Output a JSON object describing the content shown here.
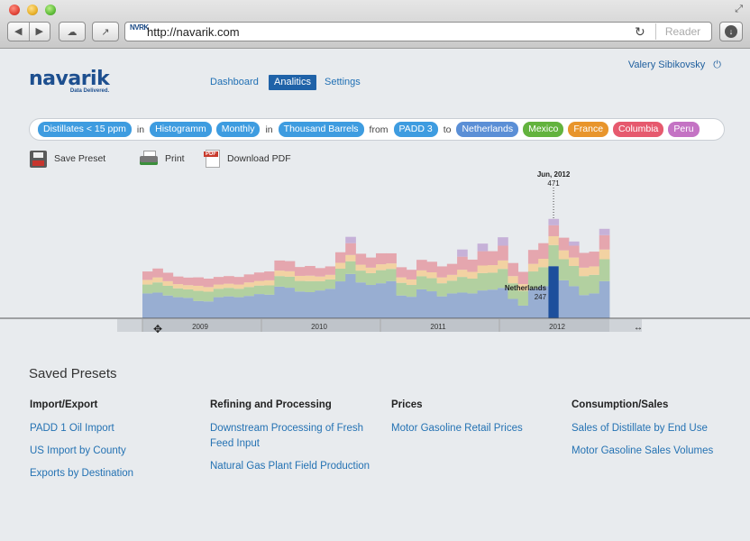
{
  "browser": {
    "url": "http://navarik.com",
    "favicon_text": "NVRK",
    "reader_label": "Reader"
  },
  "logo": {
    "name": "navarik",
    "tagline": "Data Delivered."
  },
  "nav": {
    "dashboard": "Dashboard",
    "analytics": "Analitics",
    "settings": "Settings"
  },
  "user": {
    "name": "Valery Sibikovsky"
  },
  "query": {
    "product": "Distillates < 15 ppm",
    "in1": "in",
    "chart_type": "Histogramm",
    "period": "Monthly",
    "in2": "in",
    "unit": "Thousand Barrels",
    "from_word": "from",
    "origin": "PADD 3",
    "to_word": "to",
    "destinations": [
      {
        "label": "Netherlands",
        "color": "#5b8fd6"
      },
      {
        "label": "Mexico",
        "color": "#63b33e"
      },
      {
        "label": "France",
        "color": "#e8952c"
      },
      {
        "label": "Columbia",
        "color": "#e65a6e"
      },
      {
        "label": "Peru",
        "color": "#c473c4"
      }
    ]
  },
  "actions": {
    "save": "Save Preset",
    "print": "Print",
    "pdf": "Download PDF"
  },
  "chart_data": {
    "type": "area",
    "stacked": true,
    "unit": "Thousand Barrels",
    "x_ticks": [
      "2009",
      "2010",
      "2011",
      "2012"
    ],
    "series": [
      {
        "name": "Netherlands",
        "color": "#98aed2",
        "values": [
          118,
          122,
          108,
          100,
          97,
          82,
          80,
          100,
          104,
          100,
          106,
          115,
          112,
          150,
          145,
          127,
          124,
          132,
          140,
          175,
          210,
          170,
          158,
          166,
          176,
          108,
          102,
          137,
          128,
          104,
          118,
          122,
          118,
          132,
          136,
          144,
          92,
          60,
          142,
          152,
          247,
          180,
          152,
          110,
          118,
          176
        ]
      },
      {
        "name": "Mexico",
        "color": "#b2d0a0",
        "values": [
          42,
          48,
          46,
          42,
          40,
          48,
          46,
          40,
          40,
          40,
          42,
          40,
          44,
          50,
          52,
          50,
          52,
          44,
          44,
          60,
          60,
          56,
          56,
          62,
          58,
          60,
          56,
          62,
          62,
          62,
          60,
          74,
          70,
          82,
          80,
          90,
          74,
          70,
          80,
          90,
          100,
          100,
          96,
          90,
          88,
          104
        ]
      },
      {
        "name": "France",
        "color": "#f2d2a2",
        "values": [
          22,
          24,
          22,
          20,
          20,
          24,
          22,
          20,
          20,
          20,
          22,
          22,
          24,
          26,
          26,
          24,
          26,
          22,
          22,
          28,
          30,
          28,
          26,
          28,
          26,
          26,
          26,
          28,
          28,
          28,
          28,
          34,
          32,
          36,
          36,
          40,
          34,
          32,
          36,
          40,
          42,
          42,
          40,
          40,
          40,
          46
        ]
      },
      {
        "name": "Columbia",
        "color": "#e5a6ae",
        "values": [
          40,
          42,
          40,
          36,
          36,
          40,
          40,
          36,
          36,
          36,
          38,
          40,
          42,
          48,
          48,
          42,
          46,
          40,
          40,
          50,
          56,
          52,
          48,
          52,
          48,
          48,
          46,
          50,
          50,
          52,
          52,
          62,
          58,
          68,
          66,
          70,
          62,
          58,
          66,
          74,
          52,
          60,
          56,
          70,
          70,
          68
        ]
      },
      {
        "name": "Peru",
        "color": "#c6b1d8",
        "values": [
          0,
          0,
          0,
          0,
          0,
          0,
          0,
          0,
          0,
          0,
          0,
          0,
          0,
          0,
          0,
          0,
          0,
          0,
          0,
          0,
          30,
          0,
          0,
          0,
          0,
          0,
          0,
          0,
          0,
          0,
          0,
          34,
          0,
          36,
          0,
          40,
          0,
          0,
          0,
          0,
          30,
          0,
          20,
          0,
          0,
          30
        ]
      }
    ],
    "highlight": {
      "label": "Jun, 2012",
      "total": "471",
      "series": "Netherlands",
      "value": "247"
    }
  },
  "presets": {
    "title": "Saved Presets",
    "columns": [
      {
        "heading": "Import/Export",
        "items": [
          "PADD 1 Oil Import",
          "US Import by County",
          "Exports by Destination"
        ]
      },
      {
        "heading": "Refining and Processing",
        "items": [
          "Downstream Processing of Fresh Feed Input",
          "Natural Gas Plant Field Production"
        ]
      },
      {
        "heading": "Prices",
        "items": [
          "Motor Gasoline Retail Prices"
        ]
      },
      {
        "heading": "Consumption/Sales",
        "items": [
          "Sales of Distillate by End Use",
          "Motor Gasoline Sales Volumes"
        ]
      }
    ]
  }
}
